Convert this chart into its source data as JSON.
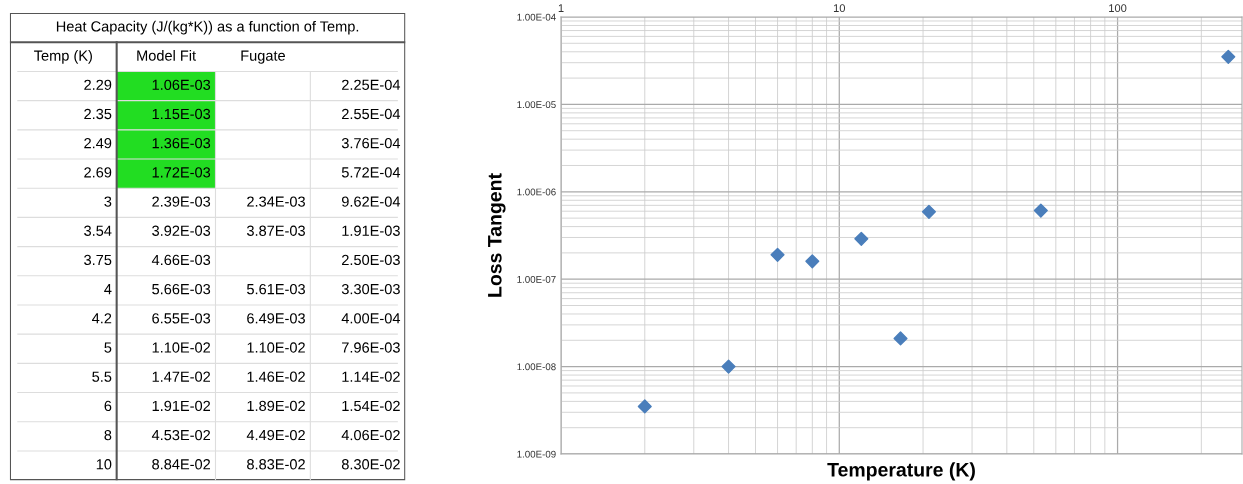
{
  "chart_data": [
    {
      "type": "other",
      "title": "Heat Capacity (J/(kg*K)) as a function of Temp.",
      "categories": [
        "Temp (K)",
        "Model Fit",
        "Fugate",
        null
      ],
      "cell_labels": [
        [
          "2.29",
          "1.06E-03",
          null,
          "2.25E-04"
        ],
        [
          "2.35",
          "1.15E-03",
          null,
          "2.55E-04"
        ],
        [
          "2.49",
          "1.36E-03",
          null,
          "3.76E-04"
        ],
        [
          "2.69",
          "1.72E-03",
          null,
          "5.72E-04"
        ],
        [
          "3",
          "2.39E-03",
          "2.34E-03",
          "9.62E-04"
        ],
        [
          "3.54",
          "3.92E-03",
          "3.87E-03",
          "1.91E-03"
        ],
        [
          "3.75",
          "4.66E-03",
          null,
          "2.50E-03"
        ],
        [
          "4",
          "5.66E-03",
          "5.61E-03",
          "3.30E-03"
        ],
        [
          "4.2",
          "6.55E-03",
          "6.49E-03",
          "4.00E-04"
        ],
        [
          "5",
          "1.10E-02",
          "1.10E-02",
          "7.96E-03"
        ],
        [
          "5.5",
          "1.47E-02",
          "1.46E-02",
          "1.14E-02"
        ],
        [
          "6",
          "1.91E-02",
          "1.89E-02",
          "1.54E-02"
        ],
        [
          "8",
          "4.53E-02",
          "4.49E-02",
          "4.06E-02"
        ],
        [
          "10",
          "8.84E-02",
          "8.83E-02",
          "8.30E-02"
        ]
      ],
      "colors": [
        [
          null,
          "#22dd22",
          null,
          null
        ],
        [
          null,
          "#22dd22",
          null,
          null
        ],
        [
          null,
          "#22dd22",
          null,
          null
        ],
        [
          null,
          "#22dd22",
          null,
          null
        ],
        [
          null,
          null,
          null,
          null
        ],
        [
          null,
          null,
          null,
          null
        ],
        [
          null,
          null,
          null,
          null
        ],
        [
          null,
          null,
          null,
          null
        ],
        [
          null,
          null,
          null,
          null
        ],
        [
          null,
          null,
          null,
          null
        ],
        [
          null,
          null,
          null,
          null
        ],
        [
          null,
          null,
          null,
          null
        ],
        [
          null,
          null,
          null,
          null
        ],
        [
          null,
          null,
          null,
          null
        ]
      ]
    },
    {
      "type": "scatter",
      "xlabel": "Temperature (K)",
      "ylabel": "Loss Tangent",
      "log": "xy",
      "x": [
        2,
        4,
        6,
        8,
        12,
        16.6,
        21,
        53,
        250
      ],
      "series": [
        {
          "color": "#4a7ebb",
          "values": [
            3.5e-09,
            1e-08,
            1.9e-07,
            1.6e-07,
            2.9e-07,
            2.1e-08,
            5.9e-07,
            6.1e-07,
            3.5e-05
          ]
        }
      ],
      "xlim": [
        1,
        280
      ],
      "xticks": [
        1,
        10,
        100
      ],
      "ylim": [
        1e-09,
        0.0001
      ],
      "yticks": [
        {
          "value": 1e-09,
          "label": "1.00E-09"
        },
        {
          "value": 1e-08,
          "label": "1.00E-08"
        },
        {
          "value": 1e-07,
          "label": "1.00E-07"
        },
        {
          "value": 1e-06,
          "label": "1.00E-06"
        },
        {
          "value": 1e-05,
          "label": "1.00E-05"
        },
        {
          "value": 0.0001,
          "label": "1.00E-04"
        }
      ],
      "grid": true,
      "marker": "diamond"
    }
  ]
}
